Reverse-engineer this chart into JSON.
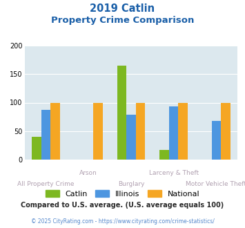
{
  "title_line1": "2019 Catlin",
  "title_line2": "Property Crime Comparison",
  "categories_top": [
    "",
    "Arson",
    "",
    "Larceny & Theft",
    ""
  ],
  "categories_bottom": [
    "All Property Crime",
    "",
    "Burglary",
    "",
    "Motor Vehicle Theft"
  ],
  "catlin": [
    40,
    0,
    165,
    17,
    0
  ],
  "illinois": [
    87,
    0,
    79,
    93,
    68
  ],
  "national": [
    100,
    100,
    100,
    100,
    100
  ],
  "catlin_color": "#7db821",
  "illinois_color": "#4d96e0",
  "national_color": "#f5a623",
  "bg_color": "#dce8ee",
  "title_color": "#1a5fa8",
  "xlabel_color": "#b0a0b0",
  "footer_text": "Compared to U.S. average. (U.S. average equals 100)",
  "footer_color": "#2a2a2a",
  "credit_text": "© 2025 CityRating.com - https://www.cityrating.com/crime-statistics/",
  "credit_color": "#5588cc",
  "ylim": [
    0,
    200
  ],
  "yticks": [
    0,
    50,
    100,
    150,
    200
  ],
  "bar_width": 0.22,
  "legend_labels": [
    "Catlin",
    "Illinois",
    "National"
  ]
}
